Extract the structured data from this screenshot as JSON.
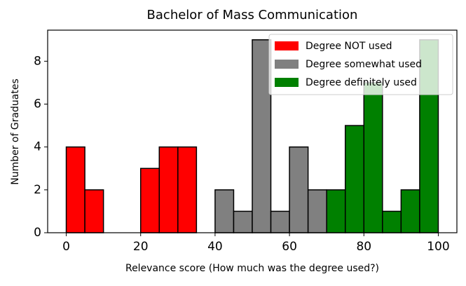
{
  "chart_data": {
    "type": "histogram",
    "title": "Bachelor of Mass Communication",
    "xlabel": "Relevance score (How much was the degree used?)",
    "ylabel": "Number of Graduates",
    "series": [
      {
        "name": "Degree NOT used",
        "color": "#ff0000",
        "bins": [
          0,
          5,
          10,
          15,
          20,
          25,
          30,
          35
        ],
        "values": [
          4,
          2,
          0,
          0,
          3,
          4,
          4
        ]
      },
      {
        "name": "Degree somewhat used",
        "color": "#808080",
        "bins": [
          40,
          45,
          50,
          55,
          60,
          65,
          70
        ],
        "values": [
          2,
          1,
          9,
          1,
          4,
          2
        ]
      },
      {
        "name": "Degree definitely used",
        "color": "#008000",
        "bins": [
          70,
          75,
          80,
          85,
          90,
          95,
          100
        ],
        "values": [
          2,
          5,
          7,
          1,
          2,
          9
        ]
      }
    ],
    "xlim": [
      -5,
      105
    ],
    "ylim": [
      0,
      9.45
    ],
    "xticks": [
      0,
      20,
      40,
      60,
      80,
      100
    ],
    "yticks": [
      0,
      2,
      4,
      6,
      8
    ],
    "legend": "upper right"
  }
}
